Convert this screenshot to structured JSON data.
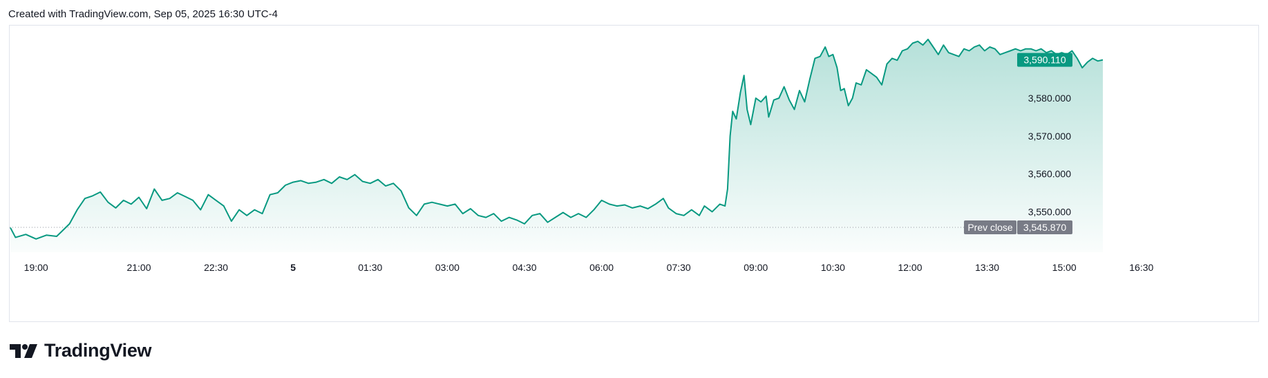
{
  "header": {
    "text": "Created with TradingView.com, Sep 05, 2025 16:30 UTC-4"
  },
  "footer": {
    "brand": "TradingView"
  },
  "colors": {
    "line": "#089981",
    "fill_top": "#089981",
    "prev_close_line": "#9598a1",
    "last_price_bg": "#089981",
    "prev_close_bg": "#787b86",
    "text": "#131722",
    "border": "#e0e3eb"
  },
  "chart_data": {
    "type": "area",
    "title": "",
    "xlabel": "",
    "ylabel": "",
    "ylim": [
      3541.5,
      3597.5
    ],
    "x_ticks": [
      {
        "label": "19:00",
        "t": 0.5,
        "bold": false
      },
      {
        "label": "21:00",
        "t": 2.5,
        "bold": false
      },
      {
        "label": "22:30",
        "t": 4.0,
        "bold": false
      },
      {
        "label": "5",
        "t": 5.5,
        "bold": true
      },
      {
        "label": "01:30",
        "t": 7.0,
        "bold": false
      },
      {
        "label": "03:00",
        "t": 8.5,
        "bold": false
      },
      {
        "label": "04:30",
        "t": 10.0,
        "bold": false
      },
      {
        "label": "06:00",
        "t": 11.5,
        "bold": false
      },
      {
        "label": "07:30",
        "t": 13.0,
        "bold": false
      },
      {
        "label": "09:00",
        "t": 14.5,
        "bold": false
      },
      {
        "label": "10:30",
        "t": 16.0,
        "bold": false
      },
      {
        "label": "12:00",
        "t": 17.5,
        "bold": false
      },
      {
        "label": "13:30",
        "t": 19.0,
        "bold": false
      },
      {
        "label": "15:00",
        "t": 20.5,
        "bold": false
      },
      {
        "label": "16:30",
        "t": 22.0,
        "bold": false
      }
    ],
    "y_ticks": [
      {
        "label": "3,550.000",
        "value": 3550
      },
      {
        "label": "3,560.000",
        "value": 3560
      },
      {
        "label": "3,570.000",
        "value": 3570
      },
      {
        "label": "3,580.000",
        "value": 3580
      }
    ],
    "last_price": {
      "label": "3,590.110",
      "value": 3590.11
    },
    "prev_close": {
      "label": "Prev close",
      "value_label": "3,545.870",
      "value": 3545.87
    },
    "series": [
      {
        "points": [
          [
            0.0,
            3545.8
          ],
          [
            0.1,
            3543.2
          ],
          [
            0.3,
            3544.0
          ],
          [
            0.5,
            3542.8
          ],
          [
            0.7,
            3543.8
          ],
          [
            0.9,
            3543.5
          ],
          [
            1.0,
            3544.8
          ],
          [
            1.15,
            3546.8
          ],
          [
            1.3,
            3550.5
          ],
          [
            1.45,
            3553.5
          ],
          [
            1.6,
            3554.2
          ],
          [
            1.75,
            3555.2
          ],
          [
            1.9,
            3552.5
          ],
          [
            2.05,
            3551.0
          ],
          [
            2.2,
            3553.0
          ],
          [
            2.35,
            3552.0
          ],
          [
            2.5,
            3553.8
          ],
          [
            2.65,
            3550.8
          ],
          [
            2.8,
            3556.0
          ],
          [
            2.95,
            3553.0
          ],
          [
            3.1,
            3553.5
          ],
          [
            3.25,
            3555.0
          ],
          [
            3.4,
            3554.0
          ],
          [
            3.55,
            3553.0
          ],
          [
            3.7,
            3550.5
          ],
          [
            3.85,
            3554.5
          ],
          [
            4.0,
            3553.0
          ],
          [
            4.15,
            3551.5
          ],
          [
            4.3,
            3547.5
          ],
          [
            4.45,
            3550.5
          ],
          [
            4.6,
            3549.0
          ],
          [
            4.75,
            3550.5
          ],
          [
            4.9,
            3549.5
          ],
          [
            5.05,
            3554.5
          ],
          [
            5.2,
            3555.0
          ],
          [
            5.35,
            3557.0
          ],
          [
            5.5,
            3557.8
          ],
          [
            5.65,
            3558.2
          ],
          [
            5.8,
            3557.5
          ],
          [
            5.95,
            3557.8
          ],
          [
            6.1,
            3558.5
          ],
          [
            6.25,
            3557.5
          ],
          [
            6.4,
            3559.2
          ],
          [
            6.55,
            3558.5
          ],
          [
            6.7,
            3559.8
          ],
          [
            6.85,
            3558.0
          ],
          [
            7.0,
            3557.5
          ],
          [
            7.15,
            3558.5
          ],
          [
            7.3,
            3556.8
          ],
          [
            7.45,
            3557.5
          ],
          [
            7.6,
            3555.5
          ],
          [
            7.75,
            3551.0
          ],
          [
            7.9,
            3549.0
          ],
          [
            8.05,
            3552.0
          ],
          [
            8.2,
            3552.5
          ],
          [
            8.35,
            3552.0
          ],
          [
            8.5,
            3551.5
          ],
          [
            8.65,
            3552.0
          ],
          [
            8.8,
            3549.5
          ],
          [
            8.95,
            3550.8
          ],
          [
            9.1,
            3549.0
          ],
          [
            9.25,
            3548.5
          ],
          [
            9.4,
            3549.5
          ],
          [
            9.55,
            3547.5
          ],
          [
            9.7,
            3548.5
          ],
          [
            9.85,
            3547.8
          ],
          [
            10.0,
            3546.8
          ],
          [
            10.15,
            3549.0
          ],
          [
            10.3,
            3549.5
          ],
          [
            10.45,
            3547.2
          ],
          [
            10.6,
            3548.5
          ],
          [
            10.75,
            3549.8
          ],
          [
            10.9,
            3548.5
          ],
          [
            11.05,
            3549.5
          ],
          [
            11.2,
            3548.5
          ],
          [
            11.35,
            3550.5
          ],
          [
            11.5,
            3553.0
          ],
          [
            11.65,
            3552.0
          ],
          [
            11.8,
            3551.5
          ],
          [
            11.95,
            3551.8
          ],
          [
            12.1,
            3551.0
          ],
          [
            12.25,
            3551.5
          ],
          [
            12.4,
            3550.8
          ],
          [
            12.55,
            3552.0
          ],
          [
            12.7,
            3553.5
          ],
          [
            12.8,
            3551.0
          ],
          [
            12.95,
            3549.5
          ],
          [
            13.1,
            3549.0
          ],
          [
            13.25,
            3550.5
          ],
          [
            13.4,
            3549.0
          ],
          [
            13.5,
            3551.5
          ],
          [
            13.65,
            3550.0
          ],
          [
            13.8,
            3552.0
          ],
          [
            13.9,
            3551.5
          ],
          [
            13.95,
            3556.0
          ],
          [
            14.0,
            3570.0
          ],
          [
            14.05,
            3576.5
          ],
          [
            14.12,
            3574.5
          ],
          [
            14.2,
            3581.5
          ],
          [
            14.27,
            3586.0
          ],
          [
            14.33,
            3577.0
          ],
          [
            14.4,
            3573.0
          ],
          [
            14.5,
            3580.0
          ],
          [
            14.6,
            3579.0
          ],
          [
            14.7,
            3580.5
          ],
          [
            14.75,
            3575.0
          ],
          [
            14.85,
            3579.5
          ],
          [
            14.95,
            3580.0
          ],
          [
            15.05,
            3583.0
          ],
          [
            15.15,
            3579.5
          ],
          [
            15.25,
            3577.0
          ],
          [
            15.35,
            3582.0
          ],
          [
            15.45,
            3579.0
          ],
          [
            15.55,
            3585.0
          ],
          [
            15.65,
            3590.5
          ],
          [
            15.75,
            3591.0
          ],
          [
            15.85,
            3593.5
          ],
          [
            15.92,
            3591.0
          ],
          [
            16.0,
            3591.5
          ],
          [
            16.08,
            3588.0
          ],
          [
            16.15,
            3582.0
          ],
          [
            16.22,
            3582.5
          ],
          [
            16.3,
            3578.0
          ],
          [
            16.38,
            3580.0
          ],
          [
            16.45,
            3584.0
          ],
          [
            16.55,
            3583.5
          ],
          [
            16.65,
            3587.5
          ],
          [
            16.75,
            3586.5
          ],
          [
            16.85,
            3585.5
          ],
          [
            16.95,
            3583.5
          ],
          [
            17.05,
            3589.0
          ],
          [
            17.15,
            3590.5
          ],
          [
            17.25,
            3590.0
          ],
          [
            17.35,
            3592.5
          ],
          [
            17.45,
            3593.0
          ],
          [
            17.55,
            3594.5
          ],
          [
            17.65,
            3595.0
          ],
          [
            17.75,
            3594.0
          ],
          [
            17.85,
            3595.5
          ],
          [
            17.95,
            3593.5
          ],
          [
            18.05,
            3591.5
          ],
          [
            18.15,
            3594.0
          ],
          [
            18.25,
            3592.0
          ],
          [
            18.35,
            3591.5
          ],
          [
            18.45,
            3591.0
          ],
          [
            18.55,
            3593.0
          ],
          [
            18.65,
            3592.5
          ],
          [
            18.75,
            3593.5
          ],
          [
            18.85,
            3594.0
          ],
          [
            18.95,
            3592.5
          ],
          [
            19.05,
            3593.5
          ],
          [
            19.15,
            3593.0
          ],
          [
            19.25,
            3591.5
          ],
          [
            19.35,
            3592.0
          ],
          [
            19.45,
            3592.5
          ],
          [
            19.55,
            3593.0
          ],
          [
            19.65,
            3592.5
          ],
          [
            19.75,
            3593.0
          ],
          [
            19.85,
            3593.0
          ],
          [
            19.95,
            3592.5
          ],
          [
            20.05,
            3593.0
          ],
          [
            20.15,
            3592.0
          ],
          [
            20.25,
            3592.5
          ],
          [
            20.35,
            3591.5
          ],
          [
            20.45,
            3592.0
          ],
          [
            20.55,
            3591.5
          ],
          [
            20.65,
            3592.5
          ],
          [
            20.75,
            3590.5
          ],
          [
            20.85,
            3588.0
          ],
          [
            20.95,
            3589.5
          ],
          [
            21.05,
            3590.5
          ],
          [
            21.15,
            3589.8
          ],
          [
            21.25,
            3590.11
          ]
        ]
      }
    ]
  }
}
